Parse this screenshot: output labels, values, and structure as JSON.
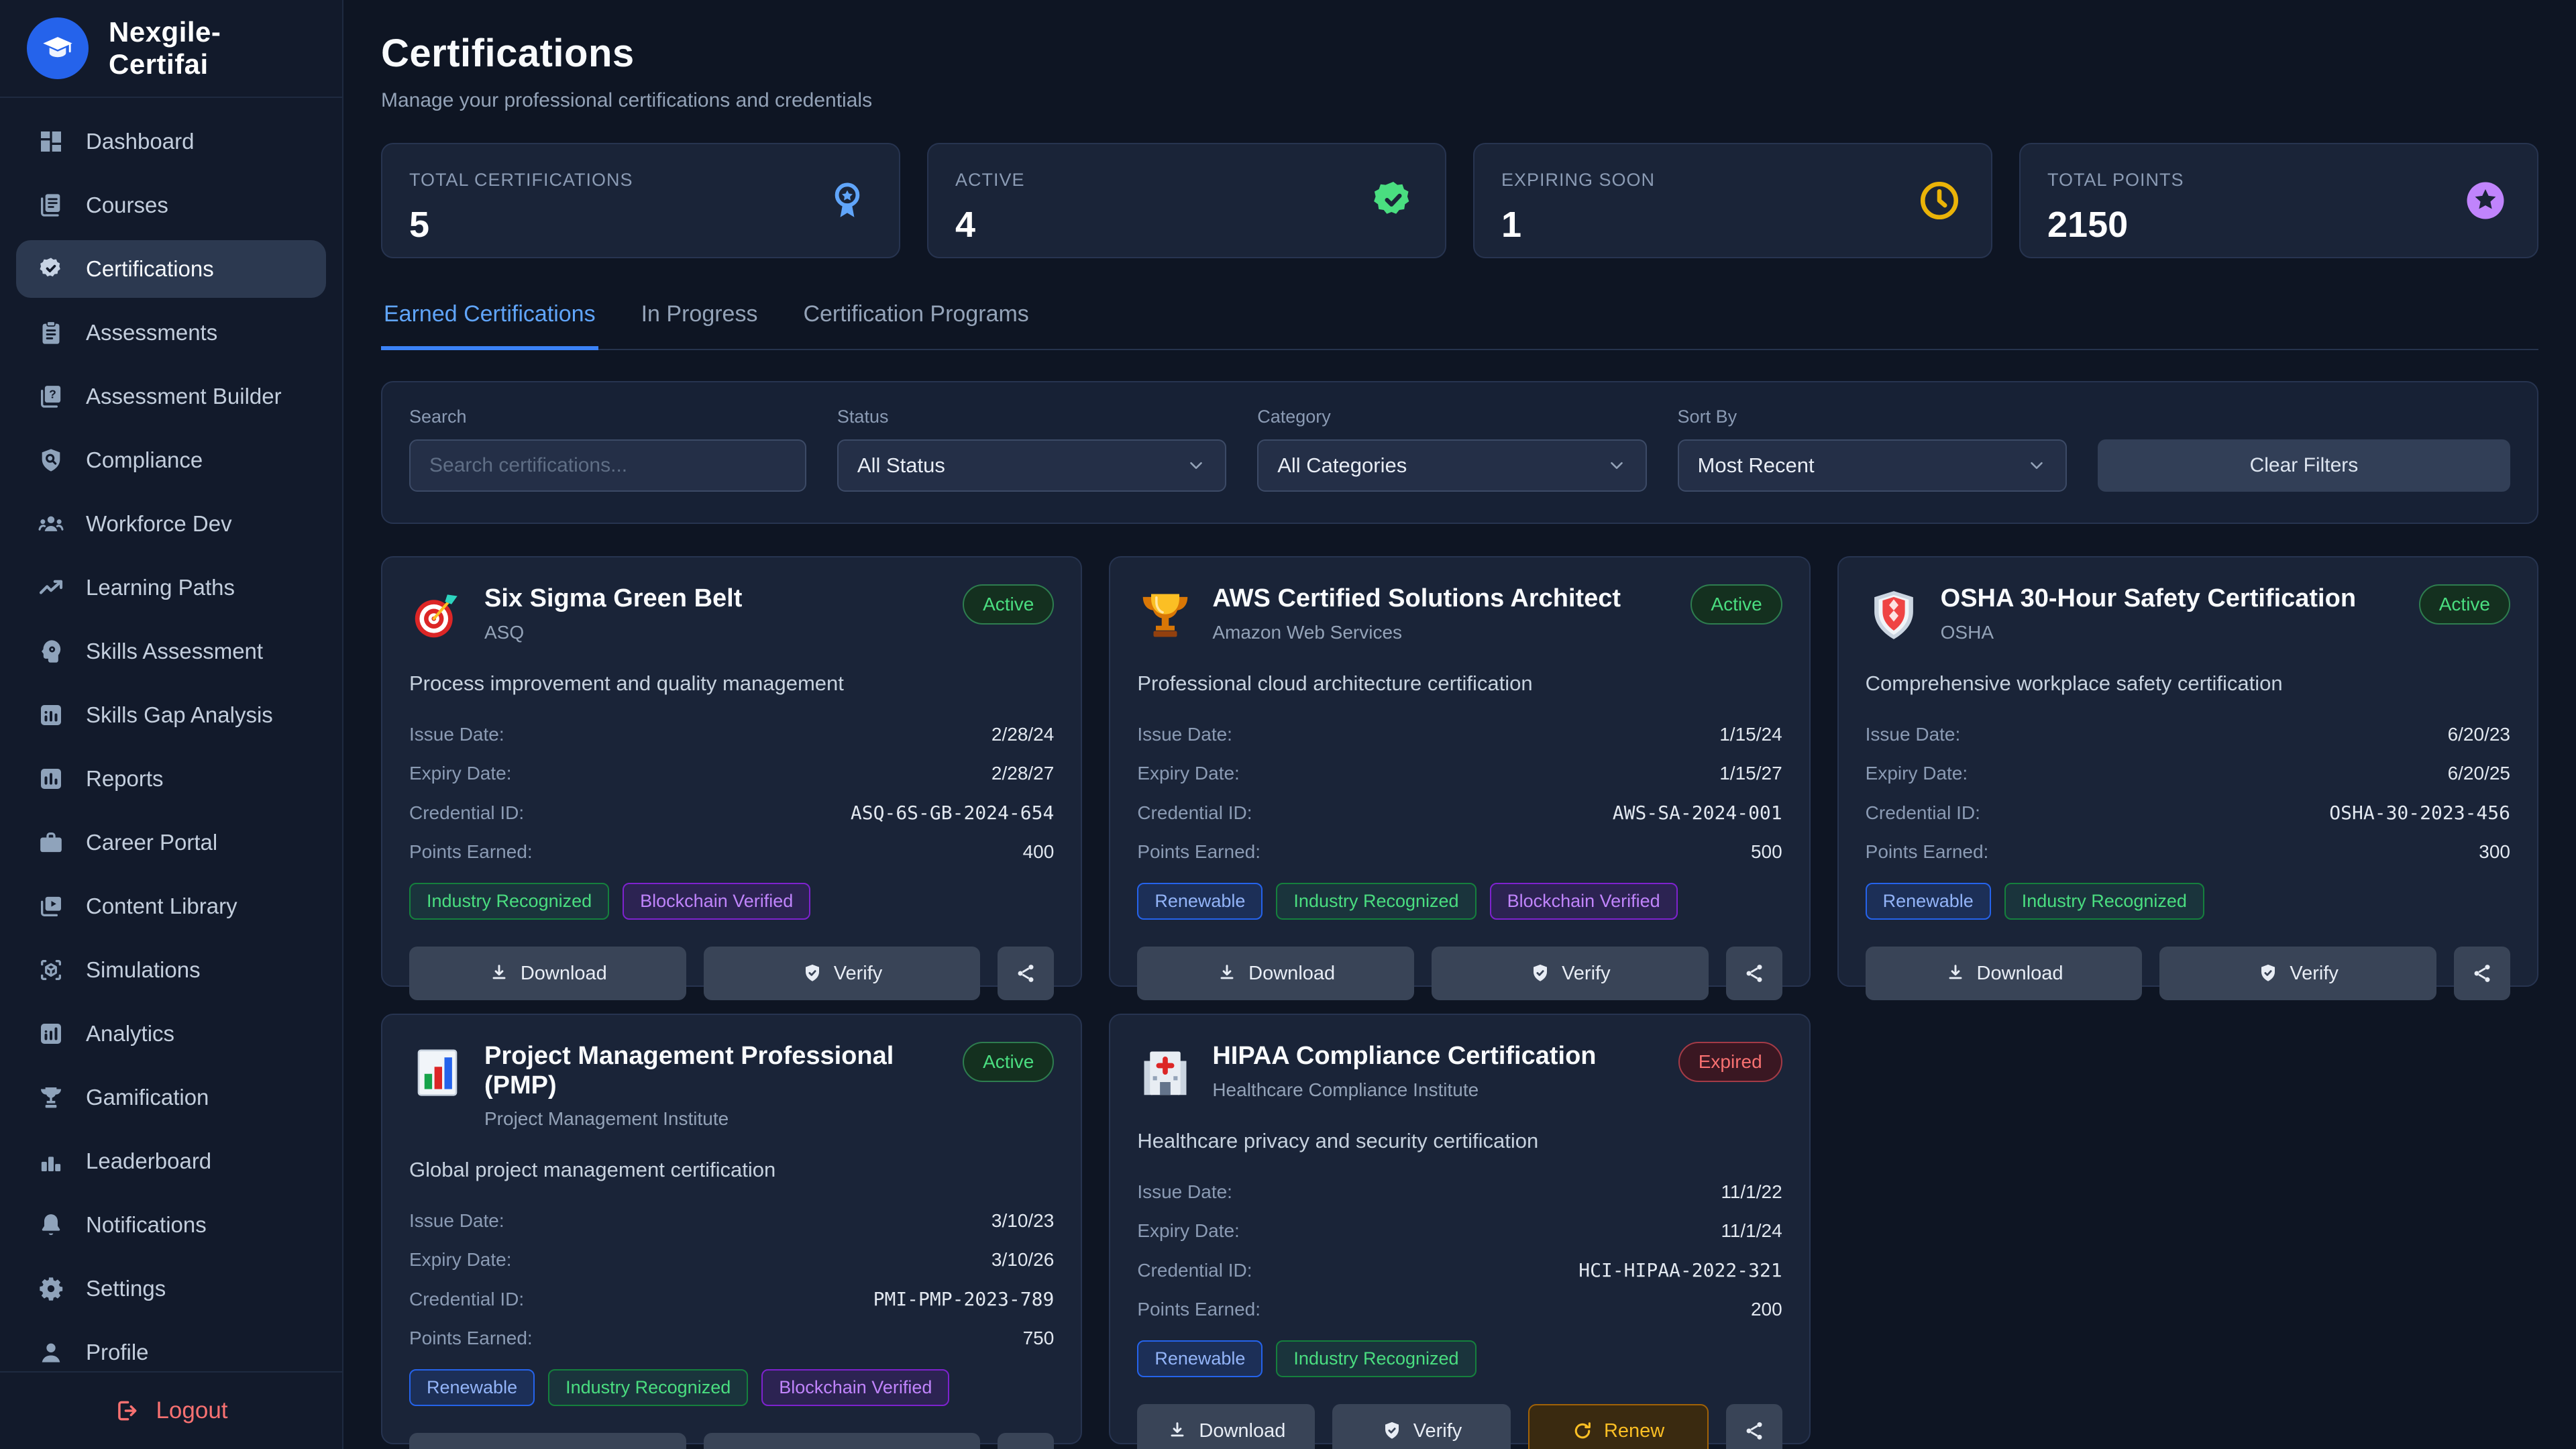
{
  "app": {
    "brand": "Nexgile-Certifai"
  },
  "sidebar": {
    "items": [
      {
        "label": "Dashboard",
        "icon": "dashboard-icon",
        "active": false
      },
      {
        "label": "Courses",
        "icon": "courses-icon",
        "active": false
      },
      {
        "label": "Certifications",
        "icon": "certifications-icon",
        "active": true
      },
      {
        "label": "Assessments",
        "icon": "assessments-icon",
        "active": false
      },
      {
        "label": "Assessment Builder",
        "icon": "assessment-builder-icon",
        "active": false
      },
      {
        "label": "Compliance",
        "icon": "compliance-icon",
        "active": false
      },
      {
        "label": "Workforce Dev",
        "icon": "workforce-dev-icon",
        "active": false
      },
      {
        "label": "Learning Paths",
        "icon": "learning-paths-icon",
        "active": false
      },
      {
        "label": "Skills Assessment",
        "icon": "skills-assessment-icon",
        "active": false
      },
      {
        "label": "Skills Gap Analysis",
        "icon": "skills-gap-icon",
        "active": false
      },
      {
        "label": "Reports",
        "icon": "reports-icon",
        "active": false
      },
      {
        "label": "Career Portal",
        "icon": "career-portal-icon",
        "active": false
      },
      {
        "label": "Content Library",
        "icon": "content-library-icon",
        "active": false
      },
      {
        "label": "Simulations",
        "icon": "simulations-icon",
        "active": false
      },
      {
        "label": "Analytics",
        "icon": "analytics-icon",
        "active": false
      },
      {
        "label": "Gamification",
        "icon": "gamification-icon",
        "active": false
      },
      {
        "label": "Leaderboard",
        "icon": "leaderboard-icon",
        "active": false
      },
      {
        "label": "Notifications",
        "icon": "notifications-icon",
        "active": false
      },
      {
        "label": "Settings",
        "icon": "settings-icon",
        "active": false
      },
      {
        "label": "Profile",
        "icon": "profile-icon",
        "active": false
      }
    ],
    "logout_label": "Logout"
  },
  "header": {
    "title": "Certifications",
    "subtitle": "Manage your professional certifications and credentials"
  },
  "stats": [
    {
      "label": "TOTAL CERTIFICATIONS",
      "value": "5",
      "icon": "award-icon",
      "color": "#60a5fa"
    },
    {
      "label": "ACTIVE",
      "value": "4",
      "icon": "badge-check-icon",
      "color": "#4ade80"
    },
    {
      "label": "EXPIRING SOON",
      "value": "1",
      "icon": "clock-icon",
      "color": "#eab308"
    },
    {
      "label": "TOTAL POINTS",
      "value": "2150",
      "icon": "star-circle-icon",
      "color": "#c084fc"
    }
  ],
  "tabs": [
    {
      "label": "Earned Certifications",
      "active": true
    },
    {
      "label": "In Progress",
      "active": false
    },
    {
      "label": "Certification Programs",
      "active": false
    }
  ],
  "filters": {
    "search_label": "Search",
    "search_placeholder": "Search certifications...",
    "status_label": "Status",
    "status_value": "All Status",
    "category_label": "Category",
    "category_value": "All Categories",
    "sort_label": "Sort By",
    "sort_value": "Most Recent",
    "clear_button": "Clear Filters"
  },
  "field_labels": {
    "issue": "Issue Date:",
    "expiry": "Expiry Date:",
    "credential": "Credential ID:",
    "points": "Points Earned:"
  },
  "actions": {
    "download": "Download",
    "verify": "Verify",
    "renew": "Renew",
    "share_icon": "share-icon"
  },
  "certifications": [
    {
      "icon": "dart-target-icon",
      "title": "Six Sigma Green Belt",
      "issuer": "ASQ",
      "status": "Active",
      "description": "Process improvement and quality management",
      "issue_date": "2/28/24",
      "expiry_date": "2/28/27",
      "credential_id": "ASQ-6S-GB-2024-654",
      "points": "400",
      "badges": [
        "Industry Recognized",
        "Blockchain Verified"
      ],
      "show_renew": false
    },
    {
      "icon": "trophy-icon",
      "title": "AWS Certified Solutions Architect",
      "issuer": "Amazon Web Services",
      "status": "Active",
      "description": "Professional cloud architecture certification",
      "issue_date": "1/15/24",
      "expiry_date": "1/15/27",
      "credential_id": "AWS-SA-2024-001",
      "points": "500",
      "badges": [
        "Renewable",
        "Industry Recognized",
        "Blockchain Verified"
      ],
      "show_renew": false
    },
    {
      "icon": "shield-icon",
      "title": "OSHA 30-Hour Safety Certification",
      "issuer": "OSHA",
      "status": "Active",
      "description": "Comprehensive workplace safety certification",
      "issue_date": "6/20/23",
      "expiry_date": "6/20/25",
      "credential_id": "OSHA-30-2023-456",
      "points": "300",
      "badges": [
        "Renewable",
        "Industry Recognized"
      ],
      "show_renew": false
    },
    {
      "icon": "bar-chart-icon",
      "title": "Project Management Professional (PMP)",
      "issuer": "Project Management Institute",
      "status": "Active",
      "description": "Global project management certification",
      "issue_date": "3/10/23",
      "expiry_date": "3/10/26",
      "credential_id": "PMI-PMP-2023-789",
      "points": "750",
      "badges": [
        "Renewable",
        "Industry Recognized",
        "Blockchain Verified"
      ],
      "show_renew": false
    },
    {
      "icon": "hospital-icon",
      "title": "HIPAA Compliance Certification",
      "issuer": "Healthcare Compliance Institute",
      "status": "Expired",
      "description": "Healthcare privacy and security certification",
      "issue_date": "11/1/22",
      "expiry_date": "11/1/24",
      "credential_id": "HCI-HIPAA-2022-321",
      "points": "200",
      "badges": [
        "Renewable",
        "Industry Recognized"
      ],
      "show_renew": true
    }
  ]
}
